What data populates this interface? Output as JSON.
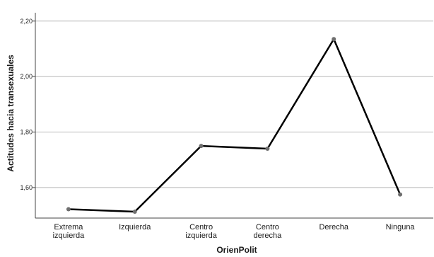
{
  "chart_data": {
    "type": "line",
    "categories": [
      [
        "Extrema",
        "izquierda"
      ],
      [
        "Izquierda"
      ],
      [
        "Centro",
        "izquierda"
      ],
      [
        "Centro",
        "derecha"
      ],
      [
        "Derecha"
      ],
      [
        "Ninguna"
      ]
    ],
    "values": [
      1.522,
      1.513,
      1.75,
      1.74,
      2.135,
      1.575
    ],
    "xlabel": "OrienPolit",
    "ylabel": "Actitudes hacia transexuales",
    "ylim": [
      1.49,
      2.23
    ],
    "yticks": [
      1.6,
      1.8,
      2.0,
      2.2
    ],
    "ytick_labels": [
      "1,60",
      "1,80",
      "2,00",
      "2,20"
    ],
    "grid": "horizontal",
    "colors": {
      "line": "#000000",
      "marker": "#6e6e6e",
      "grid": "#b8b8b8",
      "axis": "#444444"
    }
  }
}
